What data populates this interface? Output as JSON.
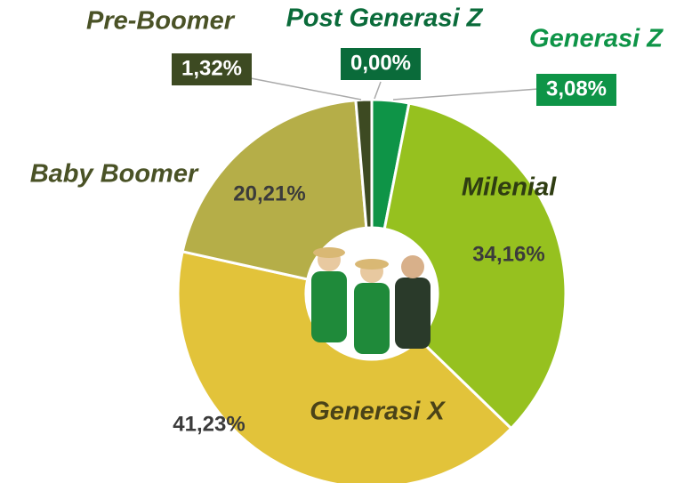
{
  "chart_data": {
    "type": "pie",
    "categories": [
      "Post Generasi Z",
      "Generasi Z",
      "Milenial",
      "Generasi X",
      "Baby Boomer",
      "Pre-Boomer"
    ],
    "values": [
      0.0,
      3.08,
      34.16,
      41.23,
      20.21,
      1.32
    ],
    "value_labels": [
      "0,00%",
      "3,08%",
      "34,16%",
      "41,23%",
      "20,21%",
      "1,32%"
    ],
    "colors": [
      "#0a6b3a",
      "#0e9447",
      "#96c11f",
      "#e2c33a",
      "#b5ae48",
      "#3d4a22"
    ]
  }
}
